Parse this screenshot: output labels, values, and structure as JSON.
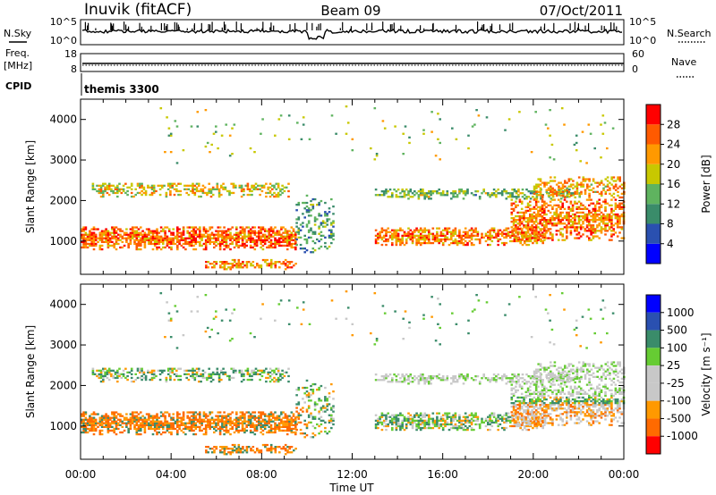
{
  "header": {
    "station": "Inuvik (fitACF)",
    "beam": "Beam 09",
    "date": "07/Oct/2011"
  },
  "left_labels": {
    "nsky": "N.Sky",
    "freq": "Freq.",
    "mhz": "[MHz]",
    "cpid": "CPID"
  },
  "right_labels": {
    "nsearch": "N.Search",
    "nave": "Nave"
  },
  "cpid_text": "themis 3300",
  "colors": {
    "power": [
      "#0000ff",
      "#2a50b0",
      "#3a8c6a",
      "#5fb35f",
      "#c8c800",
      "#ff9900",
      "#ff5a00",
      "#ff0000"
    ],
    "velocity": [
      "#ff0000",
      "#ff6a00",
      "#ff9900",
      "#c8c8c8",
      "#c8c8c8",
      "#66cc33",
      "#3a8c6a",
      "#2a50b0",
      "#0000ff"
    ],
    "ground_scatter": "#c8c8c8"
  },
  "chart_data": [
    {
      "type": "line",
      "name": "noise-panel",
      "yticks_left": [
        "10^5",
        "10^0"
      ],
      "yticks_right": [
        "10^5",
        "10^0"
      ]
    },
    {
      "type": "line",
      "name": "frequency-panel",
      "ylim_left": [
        8,
        18
      ],
      "ylim_right": [
        0,
        60
      ],
      "yticks_left": [
        "18",
        "8"
      ],
      "yticks_right": [
        "60",
        "0"
      ],
      "frequency_mhz": 10.5,
      "nave": 30
    },
    {
      "type": "heatmap",
      "name": "power-panel",
      "ylabel": "Slant Range [km]",
      "ylim": [
        180,
        4500
      ],
      "yticks": [
        1000,
        2000,
        3000,
        4000
      ],
      "xlim_hours": [
        0,
        24
      ],
      "colorbar": {
        "label": "Power [dB]",
        "ticks": [
          "4",
          "8",
          "12",
          "16",
          "20",
          "24",
          "28"
        ],
        "range": [
          0,
          30
        ]
      }
    },
    {
      "type": "heatmap",
      "name": "velocity-panel",
      "ylabel": "Slant Range [km]",
      "ylim": [
        180,
        4500
      ],
      "yticks": [
        1000,
        2000,
        3000,
        4000
      ],
      "xlim_hours": [
        0,
        24
      ],
      "colorbar": {
        "label": "Velocity [m s⁻¹]",
        "ticks": [
          "1000",
          "500",
          "100",
          "25",
          "-25",
          "-100",
          "-500",
          "-1000"
        ]
      }
    }
  ],
  "x_axis": {
    "ticks": [
      "00:00",
      "04:00",
      "08:00",
      "12:00",
      "16:00",
      "20:00",
      "00:00"
    ],
    "label": "Time UT"
  }
}
